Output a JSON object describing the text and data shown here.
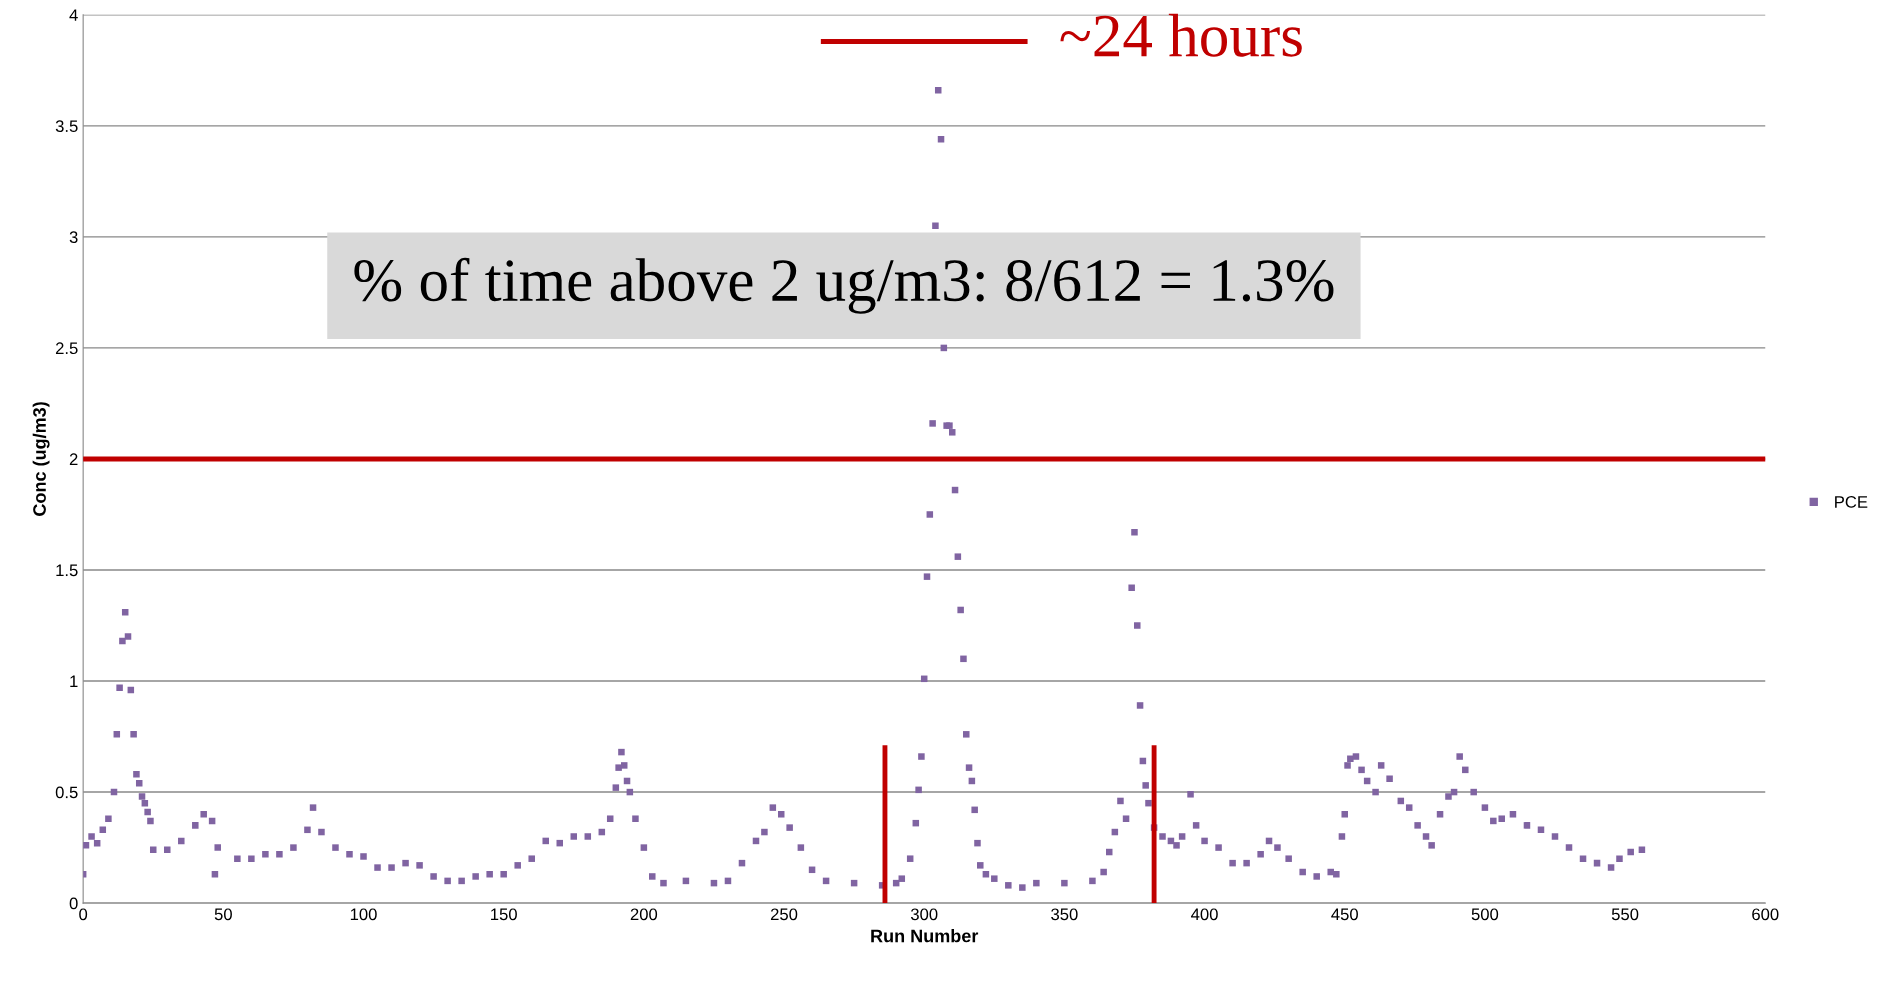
{
  "chart_data": {
    "type": "scatter",
    "xlabel": "Run Number",
    "ylabel": "Conc (ug/m3)",
    "xlim": [
      0,
      600
    ],
    "xticks": [
      0,
      50,
      100,
      150,
      200,
      250,
      300,
      350,
      400,
      450,
      500,
      550,
      600
    ],
    "ylim": [
      0,
      4
    ],
    "yticks": [
      0,
      0.5,
      1,
      1.5,
      2,
      2.5,
      3,
      3.5,
      4
    ],
    "grid": "y",
    "legend": "right",
    "marker": "square",
    "series": [
      {
        "name": "PCE",
        "color": "#8064a2",
        "x": [
          0,
          1,
          3,
          5,
          7,
          9,
          11,
          12,
          13,
          14,
          15,
          16,
          17,
          18,
          19,
          20,
          21,
          22,
          23,
          24,
          25,
          30,
          35,
          40,
          43,
          46,
          47,
          48,
          55,
          60,
          65,
          70,
          75,
          80,
          82,
          85,
          90,
          95,
          100,
          105,
          110,
          115,
          120,
          125,
          130,
          135,
          140,
          145,
          150,
          155,
          160,
          165,
          170,
          175,
          180,
          185,
          188,
          190,
          191,
          192,
          193,
          194,
          195,
          197,
          200,
          203,
          207,
          215,
          225,
          230,
          235,
          240,
          243,
          246,
          249,
          252,
          256,
          260,
          265,
          275,
          285,
          290,
          292,
          295,
          297,
          298,
          299,
          300,
          301,
          302,
          303,
          304,
          305,
          306,
          307,
          308,
          309,
          310,
          311,
          312,
          313,
          314,
          315,
          316,
          317,
          318,
          319,
          320,
          322,
          325,
          330,
          335,
          340,
          350,
          360,
          364,
          366,
          368,
          370,
          372,
          374,
          375,
          376,
          377,
          378,
          379,
          380,
          382,
          385,
          388,
          390,
          392,
          395,
          397,
          400,
          405,
          410,
          415,
          420,
          423,
          426,
          430,
          435,
          440,
          445,
          447,
          449,
          450,
          451,
          452,
          454,
          456,
          458,
          461,
          463,
          466,
          470,
          473,
          476,
          479,
          481,
          484,
          487,
          489,
          491,
          493,
          496,
          500,
          503,
          506,
          510,
          515,
          520,
          525,
          530,
          535,
          540,
          545,
          548,
          552,
          556
        ],
        "values": [
          0.13,
          0.26,
          0.3,
          0.27,
          0.33,
          0.38,
          0.5,
          0.76,
          0.97,
          1.18,
          1.31,
          1.2,
          0.96,
          0.76,
          0.58,
          0.54,
          0.48,
          0.45,
          0.41,
          0.37,
          0.24,
          0.24,
          0.28,
          0.35,
          0.4,
          0.37,
          0.13,
          0.25,
          0.2,
          0.2,
          0.22,
          0.22,
          0.25,
          0.33,
          0.43,
          0.32,
          0.25,
          0.22,
          0.21,
          0.16,
          0.16,
          0.18,
          0.17,
          0.12,
          0.1,
          0.1,
          0.12,
          0.13,
          0.13,
          0.17,
          0.2,
          0.28,
          0.27,
          0.3,
          0.3,
          0.32,
          0.38,
          0.52,
          0.61,
          0.68,
          0.62,
          0.55,
          0.5,
          0.38,
          0.25,
          0.12,
          0.09,
          0.1,
          0.09,
          0.1,
          0.18,
          0.28,
          0.32,
          0.43,
          0.4,
          0.34,
          0.25,
          0.15,
          0.1,
          0.09,
          0.08,
          0.09,
          0.11,
          0.2,
          0.36,
          0.51,
          0.66,
          1.01,
          1.47,
          1.75,
          2.16,
          3.05,
          3.66,
          3.44,
          2.5,
          2.15,
          2.15,
          2.12,
          1.86,
          1.56,
          1.32,
          1.1,
          0.76,
          0.61,
          0.55,
          0.42,
          0.27,
          0.17,
          0.13,
          0.11,
          0.08,
          0.07,
          0.09,
          0.09,
          0.1,
          0.14,
          0.23,
          0.32,
          0.46,
          0.38,
          1.42,
          1.67,
          1.25,
          0.89,
          0.64,
          0.53,
          0.45,
          0.34,
          0.3,
          0.28,
          0.26,
          0.3,
          0.49,
          0.35,
          0.28,
          0.25,
          0.18,
          0.18,
          0.22,
          0.28,
          0.25,
          0.2,
          0.14,
          0.12,
          0.14,
          0.13,
          0.3,
          0.4,
          0.62,
          0.65,
          0.66,
          0.6,
          0.55,
          0.5,
          0.62,
          0.56,
          0.46,
          0.43,
          0.35,
          0.3,
          0.26,
          0.4,
          0.48,
          0.5,
          0.66,
          0.6,
          0.5,
          0.43,
          0.37,
          0.38,
          0.4,
          0.35,
          0.33,
          0.3,
          0.25,
          0.2,
          0.18,
          0.16,
          0.2,
          0.23,
          0.24
        ]
      }
    ],
    "ref_lines": [
      {
        "axis": "y",
        "value": 2,
        "color": "#c00000"
      },
      {
        "axis": "x",
        "value": 286,
        "color": "#c00000"
      },
      {
        "axis": "x",
        "value": 382,
        "color": "#c00000"
      }
    ],
    "annotations": [
      "~24 hours",
      "% of time above 2 ug/m3: 8/612 = 1.3%"
    ]
  }
}
